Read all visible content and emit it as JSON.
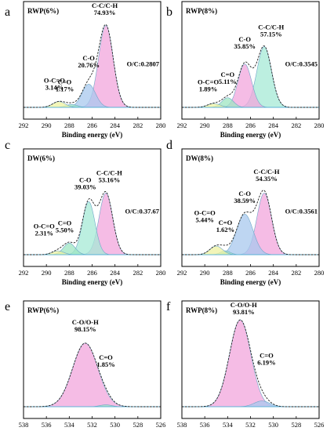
{
  "chart_data": [
    {
      "type": "area",
      "letter": "a",
      "sample": "RWP(6%)",
      "xlabel": "Binding energy (eV)",
      "xlim": [
        292,
        280
      ],
      "ticks": [
        292,
        290,
        288,
        286,
        284,
        282,
        280
      ],
      "ratio": "O/C:0.2807",
      "peaks": [
        {
          "name": "C-C/C-H",
          "percent": "74.93%",
          "center": 284.8,
          "height": 0.85,
          "fwhm": 1.5,
          "color": "#f2a6dc"
        },
        {
          "name": "C-O",
          "percent": "20.76%",
          "center": 286.3,
          "height": 0.24,
          "fwhm": 1.4,
          "color": "#a8c8ee"
        },
        {
          "name": "C=O",
          "percent": "1.17%",
          "center": 287.8,
          "height": 0.03,
          "fwhm": 1.2,
          "color": "#9ee6c2"
        },
        {
          "name": "O-C=O",
          "percent": "3.14%",
          "center": 288.9,
          "height": 0.06,
          "fwhm": 1.3,
          "color": "#eef2a0"
        }
      ]
    },
    {
      "type": "area",
      "letter": "b",
      "sample": "RWP(8%)",
      "xlabel": "Binding energy (eV)",
      "xlim": [
        292,
        280
      ],
      "ticks": [
        292,
        290,
        288,
        286,
        284,
        282,
        280
      ],
      "ratio": "O/C:0.3545",
      "peaks": [
        {
          "name": "C-C/C-H",
          "percent": "57.15%",
          "center": 284.8,
          "height": 0.63,
          "fwhm": 1.5,
          "color": "#a6ead6"
        },
        {
          "name": "C-O",
          "percent": "35.85%",
          "center": 286.5,
          "height": 0.45,
          "fwhm": 1.4,
          "color": "#f2a6dc"
        },
        {
          "name": "C=O",
          "percent": "5.11%",
          "center": 288.0,
          "height": 0.1,
          "fwhm": 1.2,
          "color": "#9ee6c2"
        },
        {
          "name": "O-C=O",
          "percent": "1.89%",
          "center": 289.2,
          "height": 0.04,
          "fwhm": 1.3,
          "color": "#eef2a0"
        }
      ]
    },
    {
      "type": "area",
      "letter": "c",
      "sample": "DW(6%)",
      "xlabel": "Binding energy (eV)",
      "xlim": [
        292,
        280
      ],
      "ticks": [
        292,
        290,
        288,
        286,
        284,
        282,
        280
      ],
      "ratio": "O/C:0.37.67",
      "peaks": [
        {
          "name": "C-C/C-H",
          "percent": "53.16%",
          "center": 284.8,
          "height": 0.64,
          "fwhm": 1.4,
          "color": "#f2a6dc"
        },
        {
          "name": "C-O",
          "percent": "39.03%",
          "center": 286.3,
          "height": 0.55,
          "fwhm": 1.3,
          "color": "#a6ead6"
        },
        {
          "name": "C=O",
          "percent": "5.50%",
          "center": 288.0,
          "height": 0.12,
          "fwhm": 1.2,
          "color": "#9ee6c2"
        },
        {
          "name": "O-C=O",
          "percent": "2.31%",
          "center": 289.0,
          "height": 0.04,
          "fwhm": 1.2,
          "color": "#eef2a0"
        }
      ]
    },
    {
      "type": "area",
      "letter": "d",
      "sample": "DW(8%)",
      "xlabel": "Binding energy (eV)",
      "xlim": [
        292,
        280
      ],
      "ticks": [
        292,
        290,
        288,
        286,
        284,
        282,
        280
      ],
      "ratio": "O/C:0.3561",
      "peaks": [
        {
          "name": "C-C/C-H",
          "percent": "54.35%",
          "center": 284.8,
          "height": 0.64,
          "fwhm": 1.5,
          "color": "#f2a6dc"
        },
        {
          "name": "C-O",
          "percent": "38.59%",
          "center": 286.5,
          "height": 0.42,
          "fwhm": 1.7,
          "color": "#a8c8ee"
        },
        {
          "name": "C=O",
          "percent": "1.62%",
          "center": 288.2,
          "height": 0.04,
          "fwhm": 1.0,
          "color": "#9ee6c2"
        },
        {
          "name": "O-C=O",
          "percent": "5.44%",
          "center": 289.0,
          "height": 0.09,
          "fwhm": 1.3,
          "color": "#eef2a0"
        }
      ]
    },
    {
      "type": "area",
      "letter": "e",
      "sample": "RWP(6%)",
      "xlabel": "Binding energy (eV)",
      "xlim": [
        538,
        526
      ],
      "ticks": [
        538,
        536,
        534,
        532,
        530,
        528,
        526
      ],
      "ratio": "",
      "peaks": [
        {
          "name": "C-O/O-H",
          "percent": "98.15%",
          "center": 532.6,
          "height": 0.66,
          "fwhm": 2.6,
          "color": "#f2a6dc"
        },
        {
          "name": "C=O",
          "percent": "1.85%",
          "center": 530.8,
          "height": 0.02,
          "fwhm": 1.2,
          "color": "#9ee6c2"
        }
      ]
    },
    {
      "type": "area",
      "letter": "f",
      "sample": "RWP(8%)",
      "xlabel": "Binding energy (eV)",
      "xlim": [
        538,
        526
      ],
      "ticks": [
        538,
        536,
        534,
        532,
        530,
        528,
        526
      ],
      "ratio": "",
      "peaks": [
        {
          "name": "C-O/O-H",
          "percent": "93.81%",
          "center": 532.9,
          "height": 0.9,
          "fwhm": 2.2,
          "color": "#f2a6dc"
        },
        {
          "name": "C=O",
          "percent": "6.19%",
          "center": 531.0,
          "height": 0.06,
          "fwhm": 1.6,
          "color": "#a8c8ee"
        }
      ]
    }
  ]
}
